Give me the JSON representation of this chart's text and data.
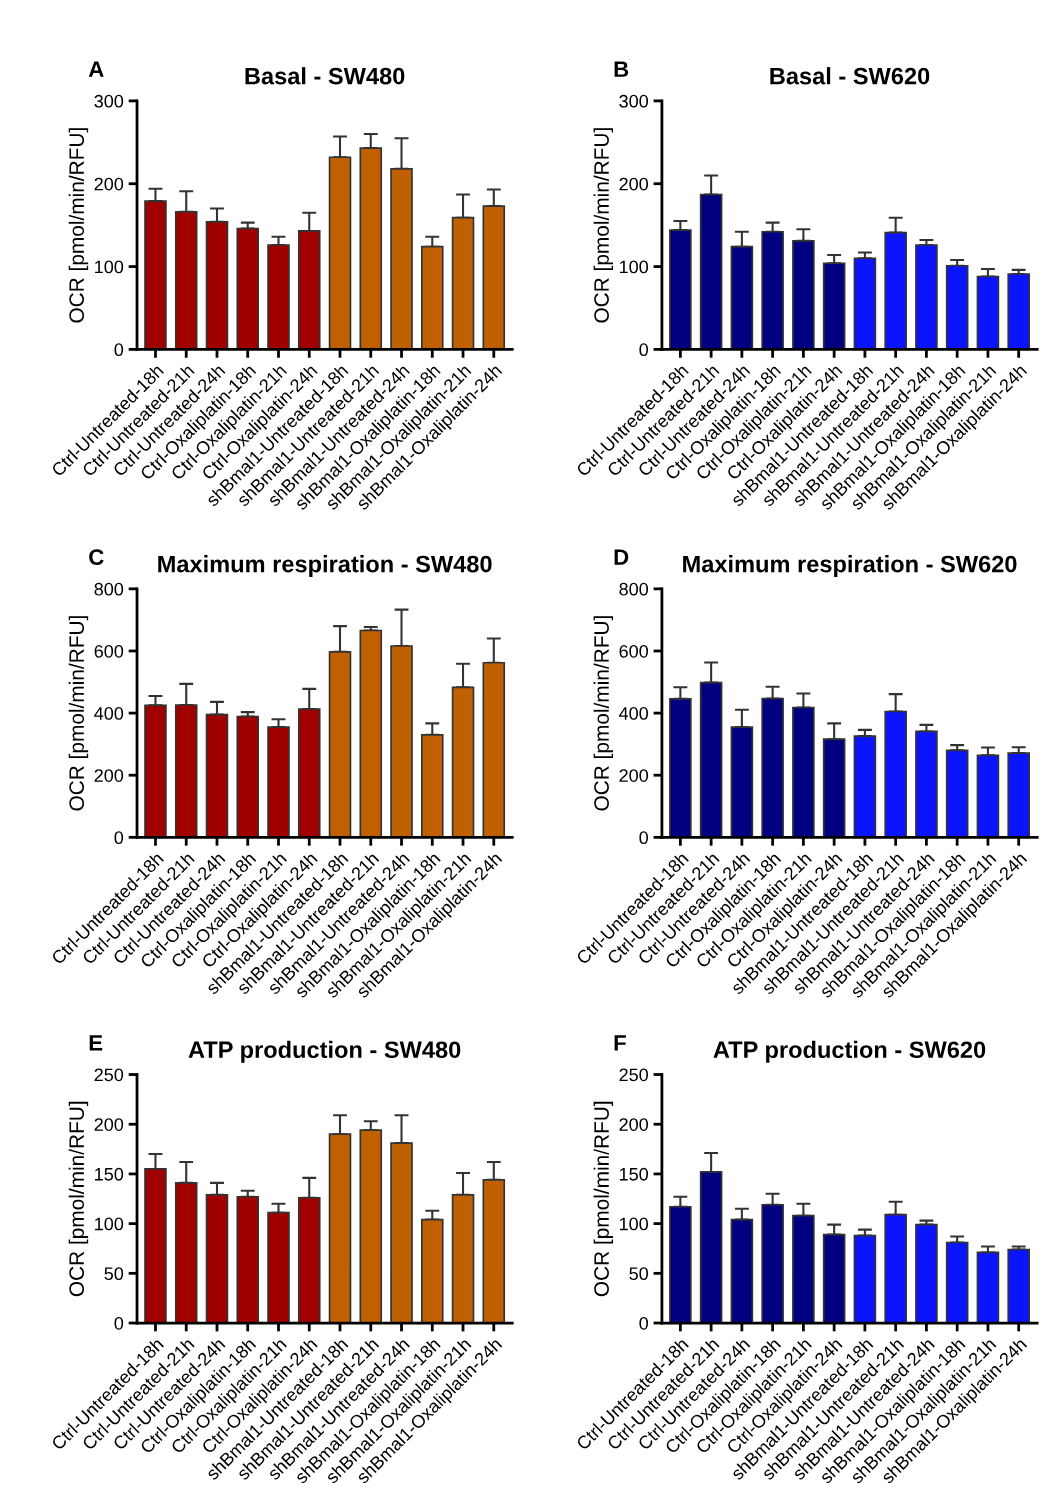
{
  "chart_data": [
    {
      "type": "bar",
      "title": "Basal - SW480",
      "ylabel": "OCR [pmol/min/RFU]",
      "annotations": [
        "A"
      ],
      "categories": [
        "Ctrl-Untreated-18h",
        "Ctrl-Untreated-21h",
        "Ctrl-Untreated-24h",
        "Ctrl-Oxaliplatin-18h",
        "Ctrl-Oxaliplatin-21h",
        "Ctrl-Oxaliplatin-24h",
        "shBmal1-Untreated-18h",
        "shBmal1-Untreated-21h",
        "shBmal1-Untreated-24h",
        "shBmal1-Oxaliplatin-18h",
        "shBmal1-Oxaliplatin-21h",
        "shBmal1-Oxaliplatin-24h"
      ],
      "values": [
        179,
        166,
        154,
        146,
        126,
        143,
        232,
        243,
        218,
        124,
        159,
        173
      ],
      "errors": [
        [
          179,
          194
        ],
        [
          166,
          191
        ],
        [
          154,
          170
        ],
        [
          146,
          153
        ],
        [
          126,
          136
        ],
        [
          143,
          165
        ],
        [
          232,
          257
        ],
        [
          243,
          260
        ],
        [
          218,
          255
        ],
        [
          124,
          136
        ],
        [
          159,
          187
        ],
        [
          173,
          193
        ]
      ],
      "colors": [
        "#a00000",
        "#a00000",
        "#a00000",
        "#a00000",
        "#a00000",
        "#a00000",
        "#c06000",
        "#c06000",
        "#c06000",
        "#c06000",
        "#c06000",
        "#c06000"
      ],
      "ylim": [
        0,
        300
      ],
      "yticks": [
        0,
        100,
        200,
        300
      ],
      "grid": false,
      "legend": false
    },
    {
      "type": "bar",
      "title": "Basal - SW620",
      "ylabel": "OCR [pmol/min/RFU]",
      "annotations": [
        "B"
      ],
      "categories": [
        "Ctrl-Untreated-18h",
        "Ctrl-Untreated-21h",
        "Ctrl-Untreated-24h",
        "Ctrl-Oxaliplatin-18h",
        "Ctrl-Oxaliplatin-21h",
        "Ctrl-Oxaliplatin-24h",
        "shBmal1-Untreated-18h",
        "shBmal1-Untreated-21h",
        "shBmal1-Untreated-24h",
        "shBmal1-Oxaliplatin-18h",
        "shBmal1-Oxaliplatin-21h",
        "shBmal1-Oxaliplatin-24h"
      ],
      "values": [
        144,
        187,
        124,
        142,
        131,
        104,
        110,
        141,
        126,
        101,
        88,
        91
      ],
      "errors": [
        [
          144,
          155
        ],
        [
          187,
          210
        ],
        [
          124,
          142
        ],
        [
          142,
          153
        ],
        [
          131,
          145
        ],
        [
          104,
          114
        ],
        [
          110,
          117
        ],
        [
          141,
          159
        ],
        [
          126,
          132
        ],
        [
          101,
          108
        ],
        [
          88,
          97
        ],
        [
          91,
          96
        ]
      ],
      "colors": [
        "#000080",
        "#000080",
        "#000080",
        "#000080",
        "#000080",
        "#000080",
        "#0a14ff",
        "#0a14ff",
        "#0a14ff",
        "#0a14ff",
        "#0a14ff",
        "#0a14ff"
      ],
      "ylim": [
        0,
        300
      ],
      "yticks": [
        0,
        100,
        200,
        300
      ],
      "grid": false,
      "legend": false
    },
    {
      "type": "bar",
      "title": "Maximum respiration - SW480",
      "ylabel": "OCR [pmol/min/RFU]",
      "annotations": [
        "C"
      ],
      "categories": [
        "Ctrl-Untreated-18h",
        "Ctrl-Untreated-21h",
        "Ctrl-Untreated-24h",
        "Ctrl-Oxaliplatin-18h",
        "Ctrl-Oxaliplatin-21h",
        "Ctrl-Oxaliplatin-24h",
        "shBmal1-Untreated-18h",
        "shBmal1-Untreated-21h",
        "shBmal1-Untreated-24h",
        "shBmal1-Oxaliplatin-18h",
        "shBmal1-Oxaliplatin-21h",
        "shBmal1-Oxaliplatin-24h"
      ],
      "values": [
        425,
        426,
        395,
        389,
        355,
        413,
        597,
        666,
        616,
        330,
        483,
        562
      ],
      "errors": [
        [
          425,
          455
        ],
        [
          426,
          494
        ],
        [
          395,
          436
        ],
        [
          389,
          403
        ],
        [
          355,
          380
        ],
        [
          413,
          478
        ],
        [
          597,
          680
        ],
        [
          666,
          677
        ],
        [
          616,
          733
        ],
        [
          330,
          367
        ],
        [
          483,
          559
        ],
        [
          562,
          640
        ]
      ],
      "colors": [
        "#a00000",
        "#a00000",
        "#a00000",
        "#a00000",
        "#a00000",
        "#a00000",
        "#c06000",
        "#c06000",
        "#c06000",
        "#c06000",
        "#c06000",
        "#c06000"
      ],
      "ylim": [
        0,
        800
      ],
      "yticks": [
        0,
        200,
        400,
        600,
        800
      ],
      "grid": false,
      "legend": false
    },
    {
      "type": "bar",
      "title": "Maximum respiration - SW620",
      "ylabel": "OCR [pmol/min/RFU]",
      "annotations": [
        "D"
      ],
      "categories": [
        "Ctrl-Untreated-18h",
        "Ctrl-Untreated-21h",
        "Ctrl-Untreated-24h",
        "Ctrl-Oxaliplatin-18h",
        "Ctrl-Oxaliplatin-21h",
        "Ctrl-Oxaliplatin-24h",
        "shBmal1-Untreated-18h",
        "shBmal1-Untreated-21h",
        "shBmal1-Untreated-24h",
        "shBmal1-Oxaliplatin-18h",
        "shBmal1-Oxaliplatin-21h",
        "shBmal1-Oxaliplatin-24h"
      ],
      "values": [
        446,
        498,
        355,
        447,
        418,
        316,
        326,
        405,
        341,
        280,
        264,
        271
      ],
      "errors": [
        [
          446,
          483
        ],
        [
          498,
          563
        ],
        [
          355,
          411
        ],
        [
          447,
          485
        ],
        [
          418,
          463
        ],
        [
          316,
          367
        ],
        [
          326,
          346
        ],
        [
          405,
          461
        ],
        [
          341,
          362
        ],
        [
          280,
          297
        ],
        [
          264,
          289
        ],
        [
          271,
          290
        ]
      ],
      "colors": [
        "#000080",
        "#000080",
        "#000080",
        "#000080",
        "#000080",
        "#000080",
        "#0a14ff",
        "#0a14ff",
        "#0a14ff",
        "#0a14ff",
        "#0a14ff",
        "#0a14ff"
      ],
      "ylim": [
        0,
        800
      ],
      "yticks": [
        0,
        200,
        400,
        600,
        800
      ],
      "grid": false,
      "legend": false
    },
    {
      "type": "bar",
      "title": "ATP production - SW480",
      "ylabel": "OCR [pmol/min/RFU]",
      "annotations": [
        "E"
      ],
      "categories": [
        "Ctrl-Untreated-18h",
        "Ctrl-Untreated-21h",
        "Ctrl-Untreated-24h",
        "Ctrl-Oxaliplatin-18h",
        "Ctrl-Oxaliplatin-21h",
        "Ctrl-Oxaliplatin-24h",
        "shBmal1-Untreated-18h",
        "shBmal1-Untreated-21h",
        "shBmal1-Untreated-24h",
        "shBmal1-Oxaliplatin-18h",
        "shBmal1-Oxaliplatin-21h",
        "shBmal1-Oxaliplatin-24h"
      ],
      "values": [
        155,
        141,
        129,
        127,
        111,
        126,
        190,
        194,
        181,
        104,
        129,
        144
      ],
      "errors": [
        [
          155,
          170
        ],
        [
          141,
          162
        ],
        [
          129,
          141
        ],
        [
          127,
          133
        ],
        [
          111,
          120
        ],
        [
          126,
          146
        ],
        [
          190,
          209
        ],
        [
          194,
          203
        ],
        [
          181,
          209
        ],
        [
          104,
          113
        ],
        [
          129,
          151
        ],
        [
          144,
          162
        ]
      ],
      "colors": [
        "#a00000",
        "#a00000",
        "#a00000",
        "#a00000",
        "#a00000",
        "#a00000",
        "#c06000",
        "#c06000",
        "#c06000",
        "#c06000",
        "#c06000",
        "#c06000"
      ],
      "ylim": [
        0,
        250
      ],
      "yticks": [
        0,
        50,
        100,
        150,
        200,
        250
      ],
      "grid": false,
      "legend": false
    },
    {
      "type": "bar",
      "title": "ATP production - SW620",
      "ylabel": "OCR [pmol/min/RFU]",
      "annotations": [
        "F"
      ],
      "categories": [
        "Ctrl-Untreated-18h",
        "Ctrl-Untreated-21h",
        "Ctrl-Untreated-24h",
        "Ctrl-Oxaliplatin-18h",
        "Ctrl-Oxaliplatin-21h",
        "Ctrl-Oxaliplatin-24h",
        "shBmal1-Untreated-18h",
        "shBmal1-Untreated-21h",
        "shBmal1-Untreated-24h",
        "shBmal1-Oxaliplatin-18h",
        "shBmal1-Oxaliplatin-21h",
        "shBmal1-Oxaliplatin-24h"
      ],
      "values": [
        117,
        152,
        104,
        119,
        108,
        89,
        88,
        109,
        99,
        81,
        71,
        74
      ],
      "errors": [
        [
          117,
          127
        ],
        [
          152,
          171
        ],
        [
          104,
          115
        ],
        [
          119,
          130
        ],
        [
          108,
          120
        ],
        [
          89,
          99
        ],
        [
          88,
          94
        ],
        [
          109,
          122
        ],
        [
          99,
          103
        ],
        [
          81,
          87
        ],
        [
          71,
          77
        ],
        [
          74,
          77
        ]
      ],
      "colors": [
        "#000080",
        "#000080",
        "#000080",
        "#000080",
        "#000080",
        "#000080",
        "#0a14ff",
        "#0a14ff",
        "#0a14ff",
        "#0a14ff",
        "#0a14ff",
        "#0a14ff"
      ],
      "ylim": [
        0,
        250
      ],
      "yticks": [
        0,
        50,
        100,
        150,
        200,
        250
      ],
      "grid": false,
      "legend": false
    }
  ]
}
